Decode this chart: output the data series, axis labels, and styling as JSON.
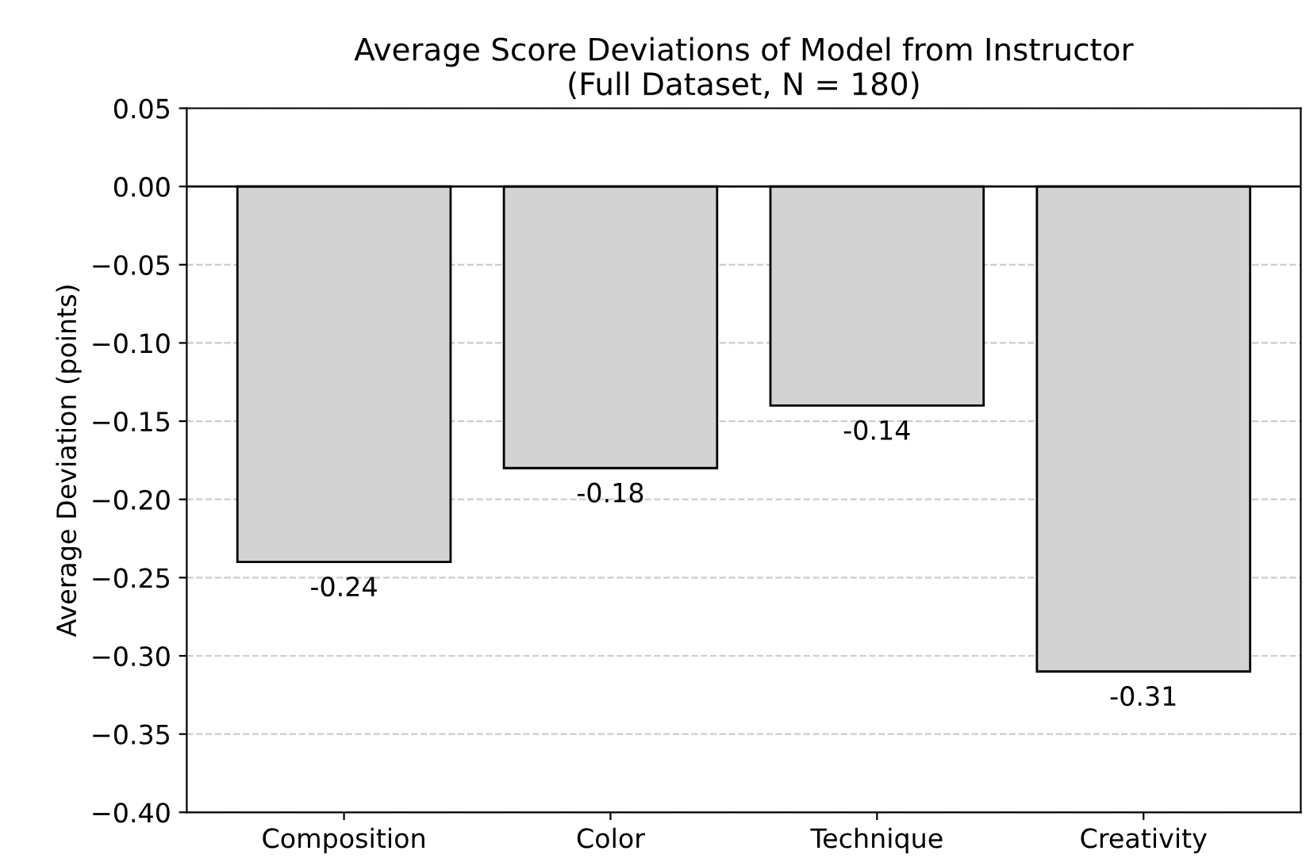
{
  "chart_data": {
    "type": "bar",
    "title": "Average Score Deviations of Model from Instructor\n(Full Dataset, N = 180)",
    "ylabel": "Average Deviation (points)",
    "categories": [
      "Composition",
      "Color",
      "Technique",
      "Creativity"
    ],
    "values": [
      -0.24,
      -0.18,
      -0.14,
      -0.31
    ],
    "color": "#d3d3d3",
    "value_labels": [
      "-0.24",
      "-0.18",
      "-0.14",
      "-0.31"
    ],
    "ylim": [
      -0.4,
      0.05
    ],
    "yticks": [
      {
        "value": -0.4,
        "label": "−0.40"
      },
      {
        "value": -0.35,
        "label": "−0.35"
      },
      {
        "value": -0.3,
        "label": "−0.30"
      },
      {
        "value": -0.25,
        "label": "−0.25"
      },
      {
        "value": -0.2,
        "label": "−0.20"
      },
      {
        "value": -0.15,
        "label": "−0.15"
      },
      {
        "value": -0.1,
        "label": "−0.10"
      },
      {
        "value": -0.05,
        "label": "−0.05"
      },
      {
        "value": 0,
        "label": "0.00"
      },
      {
        "value": 0.05,
        "label": "0.05"
      }
    ],
    "ref_lines": [
      {
        "axis": "y",
        "value": 0,
        "color": "#000000",
        "line_style": "solid"
      }
    ],
    "grid": "y"
  }
}
